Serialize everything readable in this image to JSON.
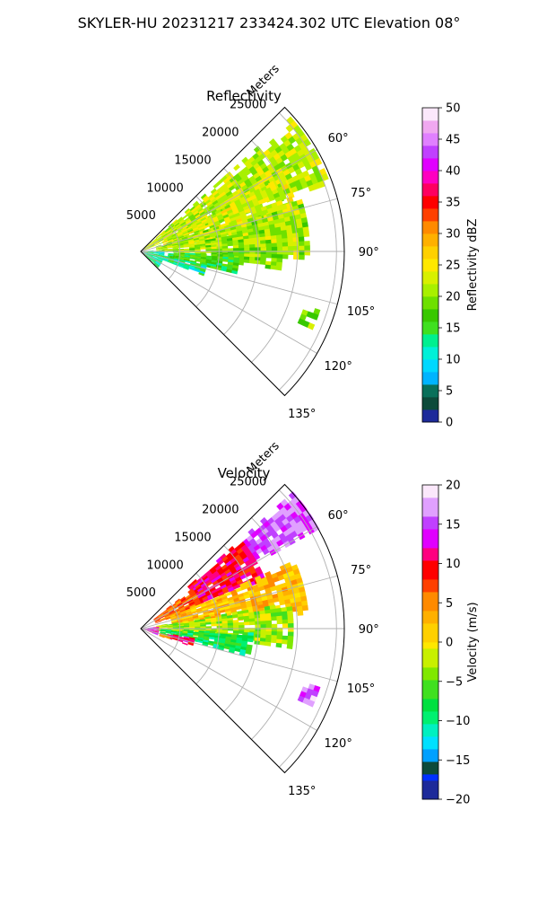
{
  "figure": {
    "title": "SKYLER-HU  20231217  233424.302 UTC Elevation 08°"
  },
  "colors": {
    "grid": "#b0b0b0",
    "frame": "#000000"
  },
  "chart_data": [
    {
      "type": "heatmap",
      "title": "Reflectivity",
      "polar": {
        "r_axis_label": "Meters",
        "r_ticks": [
          5000,
          10000,
          15000,
          20000,
          25000
        ],
        "r_tick_labels": [
          "5000",
          "10000",
          "15000",
          "20000",
          "25000"
        ],
        "theta_ticks": [
          60,
          75,
          90,
          105,
          120,
          135
        ],
        "theta_tick_labels": [
          "60°",
          "75°",
          "90°",
          "105°",
          "120°",
          "135°"
        ],
        "theta_range": [
          45,
          135
        ],
        "r_max": 26000
      },
      "colorbar": {
        "label": "Reflectivity dBZ",
        "range": [
          0,
          50
        ],
        "ticks": [
          0,
          5,
          10,
          15,
          20,
          25,
          30,
          35,
          40,
          45,
          50
        ],
        "tick_labels": [
          "0",
          "5",
          "10",
          "15",
          "20",
          "25",
          "30",
          "35",
          "40",
          "45",
          "50"
        ]
      },
      "regions": [
        {
          "theta": [
            48,
            70
          ],
          "r": [
            500,
            25500
          ],
          "value": 22
        },
        {
          "theta": [
            62,
            82
          ],
          "r": [
            3000,
            20000
          ],
          "value": 23
        },
        {
          "theta": [
            72,
            92
          ],
          "r": [
            2000,
            21000
          ],
          "value": 21
        },
        {
          "theta": [
            88,
            96
          ],
          "r": [
            9000,
            18000
          ],
          "value": 19
        },
        {
          "theta": [
            92,
            103
          ],
          "r": [
            3500,
            12000
          ],
          "value": 16
        },
        {
          "theta": [
            100,
            110
          ],
          "r": [
            3000,
            8000
          ],
          "value": 12
        },
        {
          "theta": [
            85,
            135
          ],
          "r": [
            200,
            2800
          ],
          "value": 13
        },
        {
          "theta": [
            108,
            114
          ],
          "r": [
            22000,
            23500
          ],
          "value": 20
        }
      ]
    },
    {
      "type": "heatmap",
      "title": "Velocity",
      "polar": {
        "r_axis_label": "Meters",
        "r_ticks": [
          5000,
          10000,
          15000,
          20000,
          25000
        ],
        "r_tick_labels": [
          "5000",
          "10000",
          "15000",
          "20000",
          "25000"
        ],
        "theta_ticks": [
          60,
          75,
          90,
          105,
          120,
          135
        ],
        "theta_tick_labels": [
          "60°",
          "75°",
          "90°",
          "105°",
          "120°",
          "135°"
        ],
        "theta_range": [
          45,
          135
        ],
        "r_max": 26000
      },
      "colorbar": {
        "label": "Velocity (m/s)",
        "range": [
          -20,
          20
        ],
        "ticks": [
          -20,
          -15,
          -10,
          -5,
          0,
          5,
          10,
          15,
          20
        ],
        "tick_labels": [
          "−20",
          "−15",
          "−10",
          "−5",
          "0",
          "5",
          "10",
          "15",
          "20"
        ]
      },
      "regions": [
        {
          "theta": [
            48,
            60
          ],
          "r": [
            17000,
            25500
          ],
          "value": 15
        },
        {
          "theta": [
            48,
            68
          ],
          "r": [
            8000,
            17000
          ],
          "value": 10
        },
        {
          "theta": [
            52,
            70
          ],
          "r": [
            2000,
            8000
          ],
          "value": 6
        },
        {
          "theta": [
            66,
            84
          ],
          "r": [
            4000,
            21000
          ],
          "value": 2
        },
        {
          "theta": [
            80,
            96
          ],
          "r": [
            2000,
            19000
          ],
          "value": -3
        },
        {
          "theta": [
            92,
            104
          ],
          "r": [
            2500,
            14000
          ],
          "value": -8
        },
        {
          "theta": [
            100,
            108
          ],
          "r": [
            3500,
            6500
          ],
          "value": 10
        },
        {
          "theta": [
            102,
            110
          ],
          "r": [
            2500,
            3800
          ],
          "value": 4
        },
        {
          "theta": [
            84,
            110
          ],
          "r": [
            200,
            2200
          ],
          "value": 13
        },
        {
          "theta": [
            108,
            114
          ],
          "r": [
            22000,
            23500
          ],
          "value": 16
        }
      ]
    }
  ]
}
